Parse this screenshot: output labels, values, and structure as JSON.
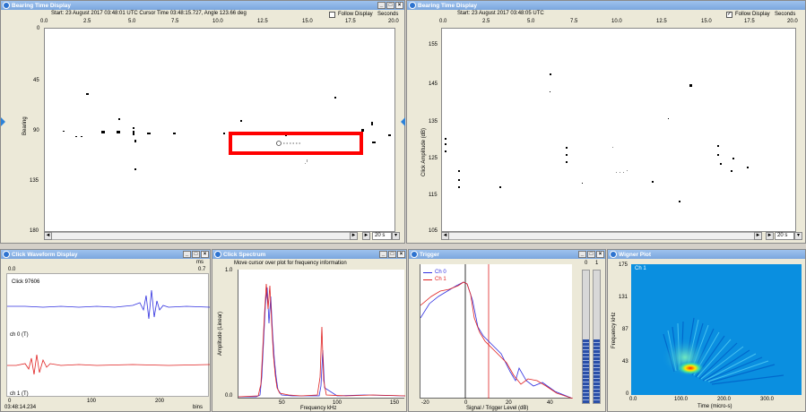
{
  "bearing_window": {
    "title": "Bearing Time Display",
    "info": "Start: 23 August 2017 03:48:01 UTC    Cursor Time 03:48:15.727, Angle 123.66 deg",
    "follow_label": "Follow Display",
    "seconds_label": "Seconds",
    "x_ticks": [
      "0.0",
      "2.5",
      "5.0",
      "7.5",
      "10.0",
      "12.5",
      "15.0",
      "17.5",
      "20.0"
    ],
    "y_ticks": [
      "0",
      "45",
      "90",
      "135",
      "180"
    ],
    "y_label": "Bearing",
    "zoom": "20 s"
  },
  "amplitude_window": {
    "title": "Bearing Time Display",
    "info": "Start: 23 August 2017 03:48:05 UTC",
    "follow_label": "Follow Display",
    "seconds_label": "Seconds",
    "x_ticks": [
      "0.0",
      "2.5",
      "5.0",
      "7.5",
      "10.0",
      "12.5",
      "15.0",
      "17.5",
      "20.0"
    ],
    "y_ticks": [
      "155",
      "145",
      "135",
      "125",
      "115",
      "105"
    ],
    "y_label": "Click Amplitude (dB)",
    "zoom": "20 s"
  },
  "waveform_window": {
    "title": "Click Waveform Display",
    "unit_ms": "ms",
    "top_left": "0.0",
    "top_right": "0.7",
    "click_label": "Click 97606",
    "ch0_label": "ch 0 (T)",
    "ch1_label": "ch 1 (T)",
    "x_ticks": [
      "0",
      "100",
      "200"
    ],
    "time_label": "03:48:14.234",
    "bins_label": "bins"
  },
  "spectrum_window": {
    "title": "Click Spectrum",
    "hint": "Move cursor over plot for frequency information",
    "y_top": "1.0",
    "y_bottom": "0.0",
    "y_label": "Amplitude (Linear)",
    "x_ticks": [
      "50",
      "100",
      "150"
    ],
    "x_label": "Frequency kHz"
  },
  "trigger_window": {
    "title": "Trigger",
    "legend": [
      "Ch 0",
      "Ch 1"
    ],
    "x_ticks": [
      "-20",
      "0",
      "20",
      "40"
    ],
    "x_label": "Signal / Trigger Level (dB)",
    "meter_labels": [
      "0",
      "1"
    ]
  },
  "wigner_window": {
    "title": "Wigner Plot",
    "channel": "Ch 1",
    "y_ticks": [
      "175",
      "131",
      "87",
      "43",
      "0"
    ],
    "y_label": "Frequency kHz",
    "x_ticks": [
      "0.0",
      "100.0",
      "200.0",
      "300.0"
    ],
    "x_label": "Time (micro-s)"
  },
  "colors": {
    "channel0": "#3030e0",
    "channel1": "#e02020",
    "highlight": "#ff0000",
    "titlebar": "#7aa6de",
    "wigner_bg": "#0a8fe0"
  }
}
